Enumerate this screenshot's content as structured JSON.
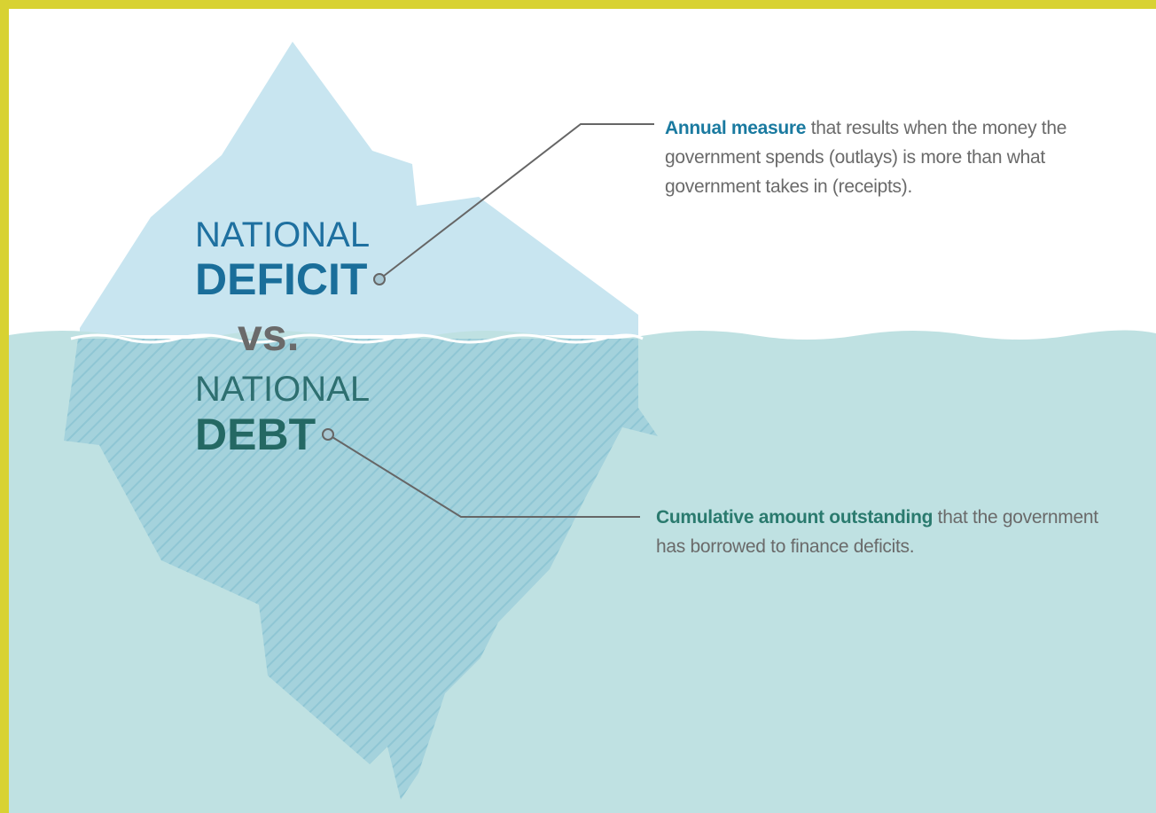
{
  "iceberg": {
    "deficit_label": {
      "line1": "NATIONAL",
      "line2": "DEFICIT"
    },
    "versus": "vs.",
    "debt_label": {
      "line1": "NATIONAL",
      "line2": "DEBT"
    }
  },
  "annotations": [
    {
      "lead": "Annual measure",
      "text": " that results when the money the government spends (outlays) is more than what government takes in (receipts)."
    },
    {
      "lead": "Cumulative amount outstanding",
      "text": " that the government has borrowed to finance deficits."
    }
  ]
}
